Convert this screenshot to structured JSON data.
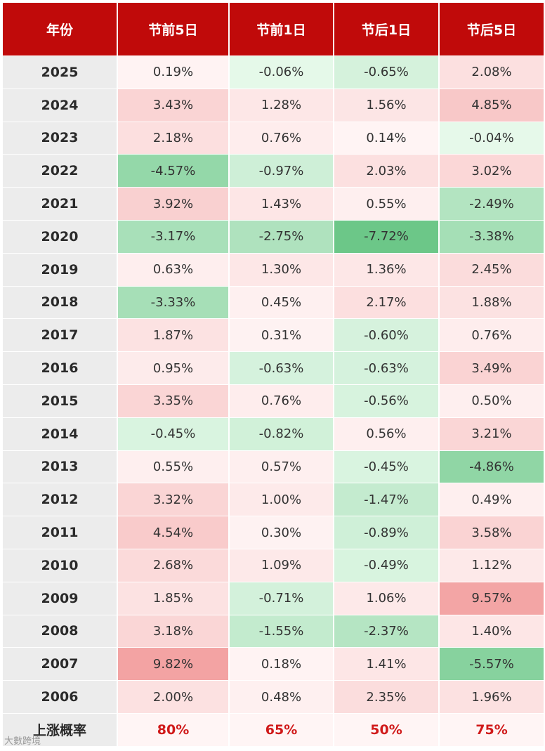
{
  "headers": [
    "年份",
    "节前5日",
    "节前1日",
    "节后1日",
    "节后5日"
  ],
  "rows": [
    {
      "year": "2025",
      "values": [
        "0.19%",
        "-0.06%",
        "-0.65%",
        "2.08%"
      ]
    },
    {
      "year": "2024",
      "values": [
        "3.43%",
        "1.28%",
        "1.56%",
        "4.85%"
      ]
    },
    {
      "year": "2023",
      "values": [
        "2.18%",
        "0.76%",
        "0.14%",
        "-0.04%"
      ]
    },
    {
      "year": "2022",
      "values": [
        "-4.57%",
        "-0.97%",
        "2.03%",
        "3.02%"
      ]
    },
    {
      "year": "2021",
      "values": [
        "3.92%",
        "1.43%",
        "0.55%",
        "-2.49%"
      ]
    },
    {
      "year": "2020",
      "values": [
        "-3.17%",
        "-2.75%",
        "-7.72%",
        "-3.38%"
      ]
    },
    {
      "year": "2019",
      "values": [
        "0.63%",
        "1.30%",
        "1.36%",
        "2.45%"
      ]
    },
    {
      "year": "2018",
      "values": [
        "-3.33%",
        "0.45%",
        "2.17%",
        "1.88%"
      ]
    },
    {
      "year": "2017",
      "values": [
        "1.87%",
        "0.31%",
        "-0.60%",
        "0.76%"
      ]
    },
    {
      "year": "2016",
      "values": [
        "0.95%",
        "-0.63%",
        "-0.63%",
        "3.49%"
      ]
    },
    {
      "year": "2015",
      "values": [
        "3.35%",
        "0.76%",
        "-0.56%",
        "0.50%"
      ]
    },
    {
      "year": "2014",
      "values": [
        "-0.45%",
        "-0.82%",
        "0.56%",
        "3.21%"
      ]
    },
    {
      "year": "2013",
      "values": [
        "0.55%",
        "0.57%",
        "-0.45%",
        "-4.86%"
      ]
    },
    {
      "year": "2012",
      "values": [
        "3.32%",
        "1.00%",
        "-1.47%",
        "0.49%"
      ]
    },
    {
      "year": "2011",
      "values": [
        "4.54%",
        "0.30%",
        "-0.89%",
        "3.58%"
      ]
    },
    {
      "year": "2010",
      "values": [
        "2.68%",
        "1.09%",
        "-0.49%",
        "1.12%"
      ]
    },
    {
      "year": "2009",
      "values": [
        "1.85%",
        "-0.71%",
        "1.06%",
        "9.57%"
      ]
    },
    {
      "year": "2008",
      "values": [
        "3.18%",
        "-1.55%",
        "-2.37%",
        "1.40%"
      ]
    },
    {
      "year": "2007",
      "values": [
        "9.82%",
        "0.18%",
        "1.41%",
        "-5.57%"
      ]
    },
    {
      "year": "2006",
      "values": [
        "2.00%",
        "0.48%",
        "2.35%",
        "1.96%"
      ]
    }
  ],
  "footer": {
    "label": "上涨概率",
    "values": [
      "80%",
      "65%",
      "50%",
      "75%"
    ]
  },
  "watermark": "大數跨境",
  "colors": {
    "header_bg": "#c00a0a",
    "positive_max": "#f3a3a3",
    "negative_max": "#6cc788",
    "neutral": "#fff6f6",
    "footer_text": "#d01a1a"
  }
}
